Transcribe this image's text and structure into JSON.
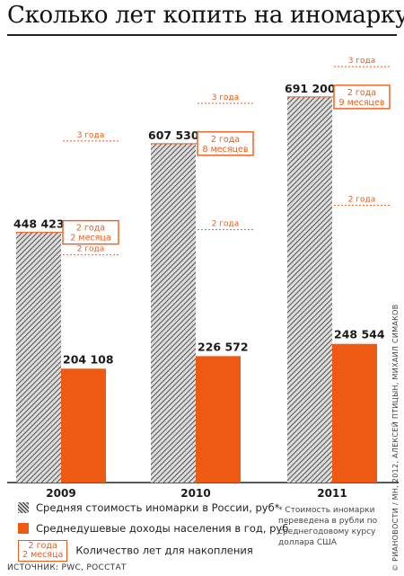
{
  "title": "Сколько лет копить на иномарку?",
  "chart_data": {
    "type": "bar",
    "categories": [
      "2009",
      "2010",
      "2011"
    ],
    "series": [
      {
        "name": "Средняя стоимость иномарки в России, руб*",
        "values": [
          448423,
          607530,
          691200
        ],
        "labels": [
          "448 423",
          "607 530",
          "691 200"
        ],
        "color": "#9a9a9a",
        "pattern": "hatched"
      },
      {
        "name": "Среднедушевые доходы населения в год, руб",
        "values": [
          204108,
          226572,
          248544
        ],
        "labels": [
          "204 108",
          "226 572",
          "248 544"
        ],
        "color": "#ee5a14"
      }
    ],
    "years_to_save": [
      {
        "year": "2009",
        "lines": [
          "2 года",
          "2 месяца"
        ]
      },
      {
        "year": "2010",
        "lines": [
          "2 года",
          "8 месяцев"
        ]
      },
      {
        "year": "2011",
        "lines": [
          "2 года",
          "9 месяцев"
        ]
      }
    ],
    "reference_lines": [
      {
        "multiple": 2,
        "label": "2 года"
      },
      {
        "multiple": 3,
        "label": "3 года"
      }
    ],
    "ylim": [
      0,
      720000
    ],
    "grid": false
  },
  "legend": {
    "cost": "Средняя стоимость иномарки в России, руб*",
    "income": "Среднедушевые доходы населения в год, руб",
    "years": "Количество лет для накопления",
    "sample_box": [
      "2 года",
      "2 месяца"
    ]
  },
  "footnote": "* Стоимость иномарки переведена в рубли по среднегодовому курсу доллара США",
  "source": "ИСТОЧНИК: PWC, РОССТАТ",
  "credit": "© РИАНОВОСТИ / МН, 2012, АЛЕКСЕЙ ПТИЦЫН, МИХАИЛ СИМАКОВ",
  "colors": {
    "accent": "#ee5a14",
    "text": "#1a1a1a"
  }
}
